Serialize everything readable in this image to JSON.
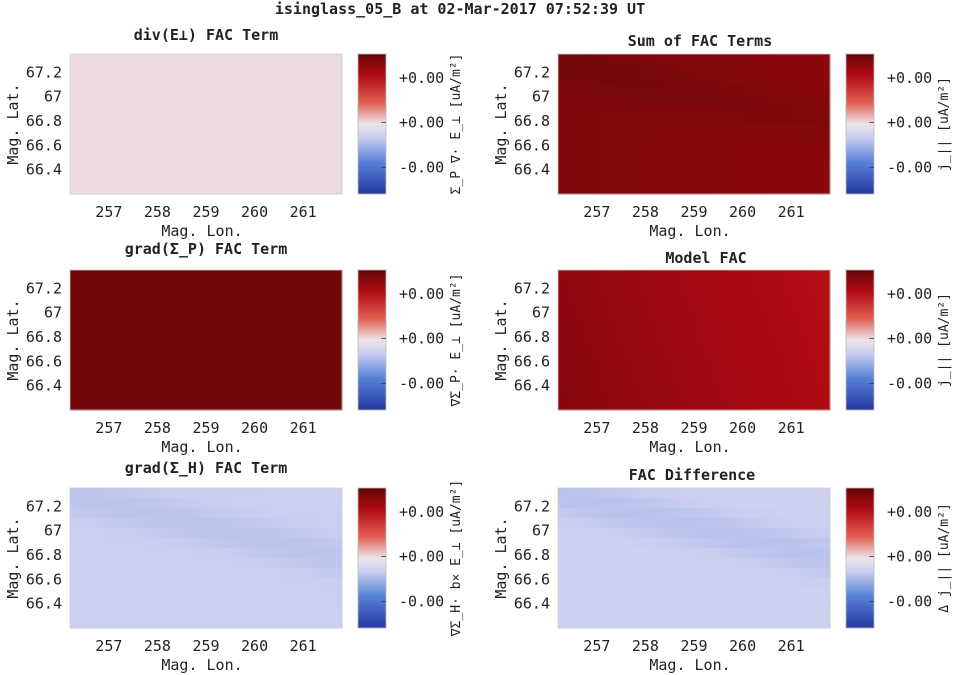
{
  "figure": {
    "title": "isinglass_05_B at 02-Mar-2017 07:52:39 UT"
  },
  "chart_data": [
    {
      "type": "heatmap",
      "title": "div(E⊥) FAC Term",
      "xlabel": "Mag. Lon.",
      "ylabel": "Mag. Lat.",
      "xlim": [
        256.2,
        261.8
      ],
      "ylim": [
        66.2,
        67.35
      ],
      "x_ticks": [
        "257",
        "258",
        "259",
        "260",
        "261"
      ],
      "y_ticks": [
        "66.4",
        "66.6",
        "66.8",
        "67",
        "67.2"
      ],
      "colorbar": {
        "label": "Σ_P ∇· E_⊥ [uA/m²]",
        "ticks": [
          "+0.00",
          "+0.00",
          "-0.00"
        ],
        "colormap": "red-white-blue"
      },
      "field": {
        "value": 0.02,
        "lat_gradient": 0.0,
        "lon_gradient": 0.0,
        "band": 0.0
      }
    },
    {
      "type": "heatmap",
      "title": "Sum of FAC Terms",
      "xlabel": "Mag. Lon.",
      "ylabel": "Mag. Lat.",
      "xlim": [
        256.2,
        261.8
      ],
      "ylim": [
        66.2,
        67.35
      ],
      "x_ticks": [
        "257",
        "258",
        "259",
        "260",
        "261"
      ],
      "y_ticks": [
        "66.4",
        "66.6",
        "66.8",
        "67",
        "67.2"
      ],
      "colorbar": {
        "label": "j_|| [uA/m²]",
        "ticks": [
          "+0.00",
          "+0.00",
          "-0.00"
        ],
        "colormap": "red-white-blue"
      },
      "field": {
        "value": 0.9,
        "lat_gradient": 0.0,
        "lon_gradient": -0.05,
        "band": 0.04
      }
    },
    {
      "type": "heatmap",
      "title": "grad(Σ_P) FAC Term",
      "xlabel": "Mag. Lon.",
      "ylabel": "Mag. Lat.",
      "xlim": [
        256.2,
        261.8
      ],
      "ylim": [
        66.2,
        67.35
      ],
      "x_ticks": [
        "257",
        "258",
        "259",
        "260",
        "261"
      ],
      "y_ticks": [
        "66.4",
        "66.6",
        "66.8",
        "67",
        "67.2"
      ],
      "colorbar": {
        "label": "∇Σ_P· E_⊥ [uA/m²]",
        "ticks": [
          "+0.00",
          "+0.00",
          "-0.00"
        ],
        "colormap": "red-white-blue"
      },
      "field": {
        "value": 0.95,
        "lat_gradient": 0.0,
        "lon_gradient": 0.0,
        "band": 0.0
      }
    },
    {
      "type": "heatmap",
      "title": "Model FAC",
      "xlabel": "Mag. Lon.",
      "ylabel": "Mag. Lat.",
      "xlim": [
        256.2,
        261.8
      ],
      "ylim": [
        66.2,
        67.35
      ],
      "x_ticks": [
        "257",
        "258",
        "259",
        "260",
        "261"
      ],
      "y_ticks": [
        "66.4",
        "66.6",
        "66.8",
        "67",
        "67.2"
      ],
      "colorbar": {
        "label": "j_|| [uA/m²]",
        "ticks": [
          "+0.00",
          "+0.00",
          "-0.00"
        ],
        "colormap": "red-white-blue"
      },
      "field": {
        "value": 0.86,
        "lat_gradient": -0.03,
        "lon_gradient": -0.16,
        "band": 0.0
      }
    },
    {
      "type": "heatmap",
      "title": "grad(Σ_H) FAC Term",
      "xlabel": "Mag. Lon.",
      "ylabel": "Mag. Lat.",
      "xlim": [
        256.2,
        261.8
      ],
      "ylim": [
        66.2,
        67.35
      ],
      "x_ticks": [
        "257",
        "258",
        "259",
        "260",
        "261"
      ],
      "y_ticks": [
        "66.4",
        "66.6",
        "66.8",
        "67",
        "67.2"
      ],
      "colorbar": {
        "label": "∇Σ_H· b× E_⊥ [uA/m²]",
        "ticks": [
          "+0.00",
          "+0.00",
          "-0.00"
        ],
        "colormap": "red-white-blue"
      },
      "field": {
        "value": -0.18,
        "lat_gradient": 0.0,
        "lon_gradient": 0.0,
        "band": -0.06
      }
    },
    {
      "type": "heatmap",
      "title": "FAC Difference",
      "xlabel": "Mag. Lon.",
      "ylabel": "Mag. Lat.",
      "xlim": [
        256.2,
        261.8
      ],
      "ylim": [
        66.2,
        67.35
      ],
      "x_ticks": [
        "257",
        "258",
        "259",
        "260",
        "261"
      ],
      "y_ticks": [
        "66.4",
        "66.6",
        "66.8",
        "67",
        "67.2"
      ],
      "colorbar": {
        "label": "Δ j_|| [uA/m²]",
        "ticks": [
          "+0.00",
          "+0.00",
          "-0.00"
        ],
        "colormap": "red-white-blue"
      },
      "field": {
        "value": -0.17,
        "lat_gradient": 0.0,
        "lon_gradient": 0.0,
        "band": -0.08
      }
    }
  ]
}
